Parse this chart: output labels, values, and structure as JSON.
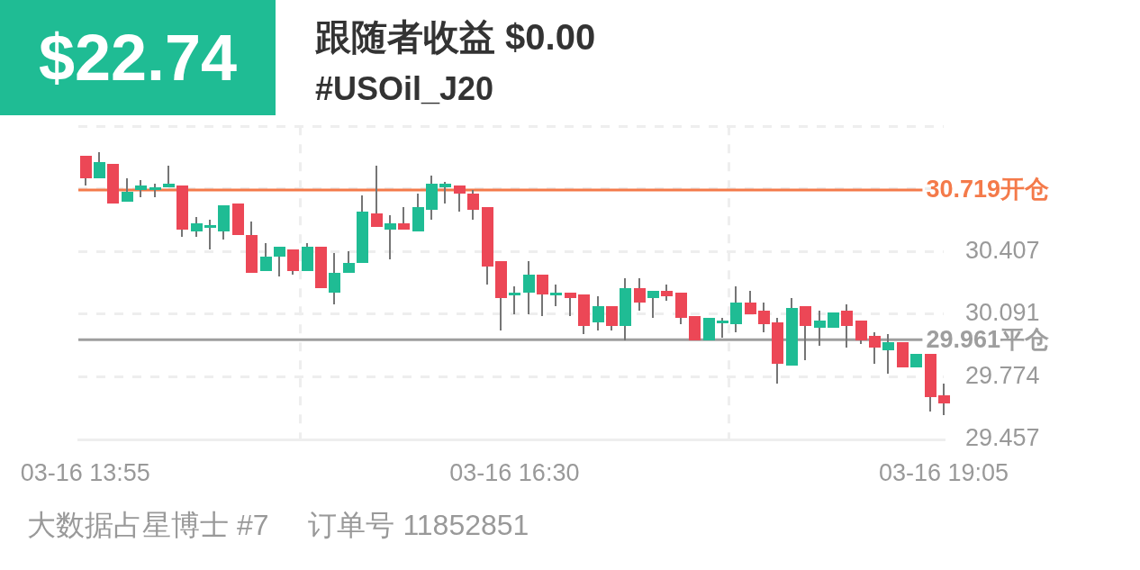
{
  "chart_data": {
    "type": "candlestick",
    "title": "跟随者收益 $0.00",
    "subtitle": "#USOil_J20",
    "annotations": [
      "$22.74",
      "大数据占星博士 #7",
      "订单号 11852851"
    ],
    "categories": [
      "03-16 13:55",
      null,
      null,
      null,
      null,
      null,
      null,
      null,
      null,
      null,
      null,
      null,
      null,
      null,
      null,
      null,
      null,
      null,
      null,
      null,
      null,
      null,
      null,
      null,
      null,
      null,
      null,
      null,
      null,
      null,
      null,
      "03-16 16:30",
      null,
      null,
      null,
      null,
      null,
      null,
      null,
      null,
      null,
      null,
      null,
      null,
      null,
      null,
      null,
      null,
      null,
      null,
      null,
      null,
      null,
      null,
      null,
      null,
      null,
      null,
      null,
      null,
      null,
      null,
      "03-16 19:05"
    ],
    "ohlc": [
      [
        30.89,
        30.89,
        30.74,
        30.78
      ],
      [
        30.78,
        30.91,
        30.78,
        30.86
      ],
      [
        30.85,
        30.85,
        30.65,
        30.65
      ],
      [
        30.66,
        30.78,
        30.66,
        30.71
      ],
      [
        30.72,
        30.77,
        30.68,
        30.74
      ],
      [
        30.72,
        30.75,
        30.68,
        30.73
      ],
      [
        30.73,
        30.84,
        30.73,
        30.75
      ],
      [
        30.74,
        30.74,
        30.48,
        30.52
      ],
      [
        30.51,
        30.58,
        30.48,
        30.55
      ],
      [
        30.53,
        30.57,
        30.42,
        30.54
      ],
      [
        30.51,
        30.64,
        30.47,
        30.64
      ],
      [
        30.65,
        30.65,
        30.49,
        30.49
      ],
      [
        30.49,
        30.56,
        30.3,
        30.3
      ],
      [
        30.31,
        30.45,
        30.31,
        30.38
      ],
      [
        30.38,
        30.43,
        30.28,
        30.43
      ],
      [
        30.42,
        30.42,
        30.29,
        30.31
      ],
      [
        30.31,
        30.45,
        30.31,
        30.43
      ],
      [
        30.43,
        30.43,
        30.22,
        30.22
      ],
      [
        30.2,
        30.4,
        30.14,
        30.3
      ],
      [
        30.3,
        30.41,
        30.3,
        30.35
      ],
      [
        30.35,
        30.69,
        30.35,
        30.61
      ],
      [
        30.6,
        30.84,
        30.53,
        30.53
      ],
      [
        30.52,
        30.59,
        30.37,
        30.55
      ],
      [
        30.55,
        30.63,
        30.52,
        30.52
      ],
      [
        30.51,
        30.7,
        30.51,
        30.63
      ],
      [
        30.62,
        30.79,
        30.57,
        30.75
      ],
      [
        30.73,
        30.76,
        30.65,
        30.75
      ],
      [
        30.74,
        30.74,
        30.61,
        30.7
      ],
      [
        30.7,
        30.72,
        30.57,
        30.62
      ],
      [
        30.63,
        30.63,
        30.24,
        30.33
      ],
      [
        30.36,
        30.36,
        30.01,
        30.17
      ],
      [
        30.19,
        30.23,
        30.09,
        30.2
      ],
      [
        30.2,
        30.36,
        30.09,
        30.29
      ],
      [
        30.29,
        30.29,
        30.08,
        30.19
      ],
      [
        30.19,
        30.24,
        30.13,
        30.2
      ],
      [
        30.2,
        30.2,
        30.08,
        30.17
      ],
      [
        30.19,
        30.19,
        29.99,
        30.03
      ],
      [
        30.05,
        30.18,
        30.01,
        30.13
      ],
      [
        30.13,
        30.13,
        30.01,
        30.03
      ],
      [
        30.03,
        30.27,
        29.96,
        30.22
      ],
      [
        30.22,
        30.27,
        30.11,
        30.15
      ],
      [
        30.17,
        30.21,
        30.07,
        30.21
      ],
      [
        30.21,
        30.24,
        30.16,
        30.18
      ],
      [
        30.2,
        30.2,
        30.04,
        30.07
      ],
      [
        30.08,
        30.08,
        29.96,
        29.96
      ],
      [
        29.96,
        30.07,
        29.96,
        30.07
      ],
      [
        30.05,
        30.07,
        29.97,
        30.06
      ],
      [
        30.04,
        30.23,
        30.0,
        30.15
      ],
      [
        30.15,
        30.21,
        30.09,
        30.09
      ],
      [
        30.11,
        30.15,
        30.0,
        30.04
      ],
      [
        30.05,
        30.07,
        29.74,
        29.84
      ],
      [
        29.83,
        30.17,
        29.83,
        30.12
      ],
      [
        30.13,
        30.13,
        29.86,
        30.03
      ],
      [
        30.02,
        30.11,
        29.93,
        30.06
      ],
      [
        30.02,
        30.1,
        30.02,
        30.1
      ],
      [
        30.11,
        30.14,
        29.92,
        30.03
      ],
      [
        30.06,
        30.06,
        29.94,
        29.96
      ],
      [
        29.98,
        30.0,
        29.84,
        29.92
      ],
      [
        29.91,
        29.99,
        29.79,
        29.95
      ],
      [
        29.95,
        29.95,
        29.82,
        29.82
      ],
      [
        29.82,
        29.89,
        29.82,
        29.89
      ],
      [
        29.89,
        29.89,
        29.6,
        29.67
      ],
      [
        29.68,
        29.74,
        29.58,
        29.64
      ]
    ],
    "colors": [
      "#ec4756",
      "#1fbc94",
      "#ec4756",
      "#1fbc94",
      "#1fbc94",
      "#1fbc94",
      "#1fbc94",
      "#ec4756",
      "#1fbc94",
      "#1fbc94",
      "#1fbc94",
      "#ec4756",
      "#ec4756",
      "#1fbc94",
      "#1fbc94",
      "#ec4756",
      "#1fbc94",
      "#ec4756",
      "#1fbc94",
      "#1fbc94",
      "#1fbc94",
      "#ec4756",
      "#1fbc94",
      "#ec4756",
      "#1fbc94",
      "#1fbc94",
      "#1fbc94",
      "#ec4756",
      "#ec4756",
      "#ec4756",
      "#ec4756",
      "#1fbc94",
      "#1fbc94",
      "#ec4756",
      "#1fbc94",
      "#ec4756",
      "#ec4756",
      "#1fbc94",
      "#ec4756",
      "#1fbc94",
      "#ec4756",
      "#1fbc94",
      "#ec4756",
      "#ec4756",
      "#ec4756",
      "#1fbc94",
      "#1fbc94",
      "#1fbc94",
      "#ec4756",
      "#ec4756",
      "#ec4756",
      "#1fbc94",
      "#ec4756",
      "#1fbc94",
      "#1fbc94",
      "#ec4756",
      "#ec4756",
      "#ec4756",
      "#1fbc94",
      "#ec4756",
      "#1fbc94",
      "#ec4756",
      "#ec4756"
    ],
    "ylim": [
      29.457,
      31.041
    ],
    "yticks": [
      29.457,
      29.774,
      30.091,
      30.407,
      {
        "value": 30.724,
        "label": null
      },
      {
        "value": 31.041,
        "label": null
      }
    ],
    "ref_lines": [
      {
        "axis": "y",
        "value": 30.719,
        "label": "30.719开仓",
        "color": "#f47a4a"
      },
      {
        "axis": "y",
        "value": 29.961,
        "label": "29.961平仓",
        "color": "#9e9e9e"
      }
    ],
    "grid": true
  }
}
